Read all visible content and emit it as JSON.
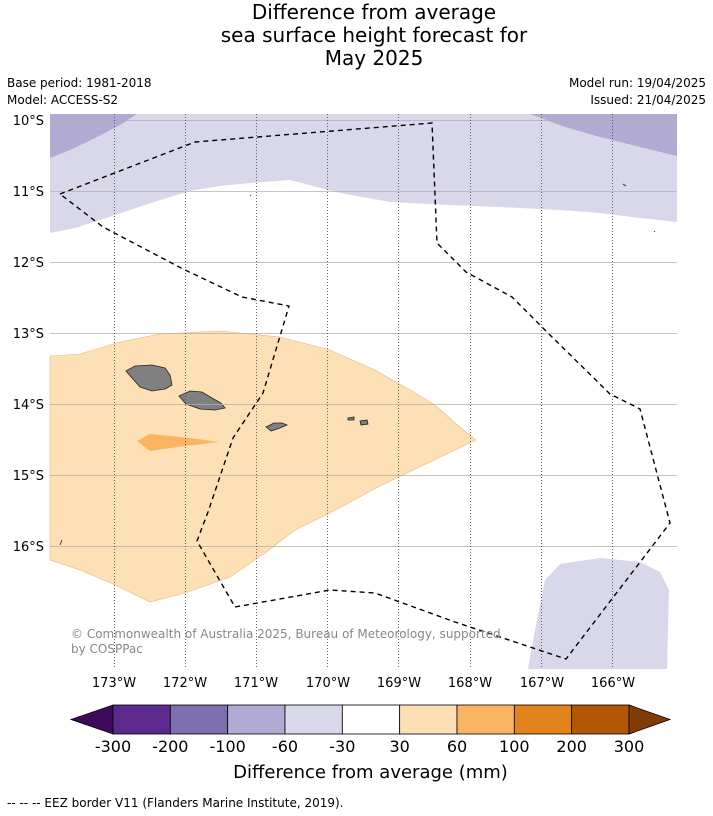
{
  "title": {
    "line1": "Difference from average",
    "line2": "sea surface height forecast for",
    "line3": "May 2025"
  },
  "meta": {
    "base_period": "Base period: 1981-2018",
    "model": "Model: ACCESS-S2",
    "model_run": "Model run: 19/04/2025",
    "issued": "Issued: 21/04/2025"
  },
  "map": {
    "lat_labels": [
      "10°S",
      "11°S",
      "12°S",
      "13°S",
      "14°S",
      "15°S",
      "16°S"
    ],
    "lon_labels": [
      "173°W",
      "172°W",
      "171°W",
      "170°W",
      "169°W",
      "168°W",
      "167°W",
      "166°W"
    ],
    "copyright_line1": "© Commonwealth of Australia 2025, Bureau of Meteorology, supported",
    "copyright_line2": "by COSPPac",
    "colors": {
      "light_purple": "#d8d8ea",
      "mid_purple": "#b1aad2",
      "light_orange": "#fde0b5",
      "mid_orange": "#f9b562",
      "land": "#808080",
      "grid": "#b0b0b0"
    }
  },
  "colorbar": {
    "ticks": [
      "-300",
      "-200",
      "-100",
      "-60",
      "-30",
      "30",
      "60",
      "100",
      "200",
      "300"
    ],
    "colors": [
      "#3d0a5c",
      "#5b2a8c",
      "#7f6fae",
      "#b1aad2",
      "#d8d8ea",
      "#ffffff",
      "#fde0b5",
      "#f9b562",
      "#e2821a",
      "#b35608",
      "#7f3b08"
    ],
    "title": "Difference from average (mm)"
  },
  "footer": "--  --  -- EEZ border V11 (Flanders Marine Institute, 2019)."
}
